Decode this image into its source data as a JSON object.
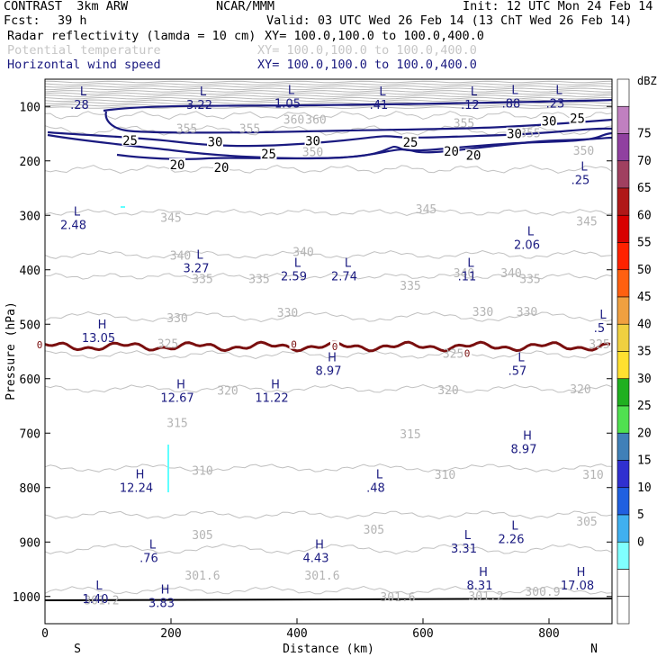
{
  "header": {
    "title": "CONTRAST  3km ARW",
    "producer": "NCAR/MMM",
    "init": "Init: 12 UTC Mon 24 Feb 14",
    "fcst_label": "Fcst:",
    "fcst_value": "39 h",
    "valid": "Valid: 03 UTC Wed 26 Feb 14 (13 ChT Wed 26 Feb 14)",
    "fields": [
      {
        "name": "Radar reflectivity (lamda = 10 cm)",
        "xy": "XY= 100.0,100.0 to 100.0,400.0",
        "color": "#000000"
      },
      {
        "name": "Potential temperature",
        "xy": "XY= 100.0,100.0 to 100.0,400.0",
        "color": "#c6c6c6"
      },
      {
        "name": "Horizontal wind speed",
        "xy": "XY= 100.0,100.0 to 100.0,400.0",
        "color": "#1a1a80"
      }
    ]
  },
  "chart_data": {
    "type": "cross-section contour",
    "xlabel": "Distance (km)",
    "ylabel": "Pressure (hPa)",
    "xlim": [
      0,
      900
    ],
    "ylim": [
      1050,
      50
    ],
    "x_ticks": [
      0,
      200,
      400,
      600,
      800
    ],
    "y_ticks": [
      100,
      200,
      300,
      400,
      500,
      600,
      700,
      800,
      900,
      1000
    ],
    "endpoint_labels": {
      "left": "S",
      "right": "N"
    },
    "colorbar": {
      "title": "dBZ",
      "levels": [
        75,
        70,
        65,
        60,
        55,
        50,
        45,
        40,
        35,
        30,
        25,
        20,
        15,
        10,
        5,
        0
      ],
      "colors": [
        "#ffffff",
        "#c080c0",
        "#9040a0",
        "#a04060",
        "#b01818",
        "#d80000",
        "#ff2200",
        "#ff6010",
        "#f0a040",
        "#f0d040",
        "#ffe030",
        "#20b020",
        "#50e050",
        "#4080b8",
        "#3030d0",
        "#2060e0",
        "#40b0f0",
        "#80ffff",
        "#ffffff",
        "#ffffff"
      ]
    },
    "theta_labels": [
      {
        "text": "360",
        "x": 395,
        "p": 125
      },
      {
        "text": "360",
        "x": 430,
        "p": 125
      },
      {
        "text": "355",
        "x": 225,
        "p": 142
      },
      {
        "text": "355",
        "x": 325,
        "p": 142
      },
      {
        "text": "355",
        "x": 665,
        "p": 132
      },
      {
        "text": "355",
        "x": 770,
        "p": 150
      },
      {
        "text": "350",
        "x": 425,
        "p": 185
      },
      {
        "text": "350",
        "x": 855,
        "p": 182
      },
      {
        "text": "345",
        "x": 200,
        "p": 305
      },
      {
        "text": "345",
        "x": 605,
        "p": 290
      },
      {
        "text": "345",
        "x": 860,
        "p": 312
      },
      {
        "text": "340",
        "x": 410,
        "p": 368
      },
      {
        "text": "340",
        "x": 665,
        "p": 407
      },
      {
        "text": "340",
        "x": 740,
        "p": 407
      },
      {
        "text": "340",
        "x": 215,
        "p": 375
      },
      {
        "text": "335",
        "x": 250,
        "p": 418
      },
      {
        "text": "335",
        "x": 340,
        "p": 418
      },
      {
        "text": "335",
        "x": 580,
        "p": 430
      },
      {
        "text": "335",
        "x": 770,
        "p": 418
      },
      {
        "text": "330",
        "x": 210,
        "p": 490
      },
      {
        "text": "330",
        "x": 385,
        "p": 480
      },
      {
        "text": "330",
        "x": 695,
        "p": 478
      },
      {
        "text": "330",
        "x": 765,
        "p": 478
      },
      {
        "text": "325",
        "x": 195,
        "p": 537
      },
      {
        "text": "325",
        "x": 648,
        "p": 555
      },
      {
        "text": "325",
        "x": 880,
        "p": 538
      },
      {
        "text": "320",
        "x": 290,
        "p": 623
      },
      {
        "text": "320",
        "x": 640,
        "p": 622
      },
      {
        "text": "320",
        "x": 850,
        "p": 620
      },
      {
        "text": "315",
        "x": 210,
        "p": 682
      },
      {
        "text": "315",
        "x": 580,
        "p": 703
      },
      {
        "text": "310",
        "x": 250,
        "p": 770
      },
      {
        "text": "310",
        "x": 635,
        "p": 777
      },
      {
        "text": "310",
        "x": 870,
        "p": 777
      },
      {
        "text": "305",
        "x": 250,
        "p": 888
      },
      {
        "text": "305",
        "x": 522,
        "p": 878
      },
      {
        "text": "305",
        "x": 860,
        "p": 863
      },
      {
        "text": "301.6",
        "x": 250,
        "p": 962
      },
      {
        "text": "301.6",
        "x": 440,
        "p": 962
      },
      {
        "text": "301.6",
        "x": 560,
        "p": 1002
      },
      {
        "text": "301.2",
        "x": 90,
        "p": 1008
      },
      {
        "text": "301.2",
        "x": 700,
        "p": 1000
      },
      {
        "text": "300.9",
        "x": 790,
        "p": 992
      }
    ],
    "wind_labels": [
      {
        "text": "25",
        "x": 135,
        "p": 162
      },
      {
        "text": "30",
        "x": 270,
        "p": 165
      },
      {
        "text": "30",
        "x": 425,
        "p": 163
      },
      {
        "text": "25",
        "x": 355,
        "p": 187
      },
      {
        "text": "20",
        "x": 210,
        "p": 207
      },
      {
        "text": "20",
        "x": 280,
        "p": 212
      },
      {
        "text": "25",
        "x": 580,
        "p": 166
      },
      {
        "text": "20",
        "x": 645,
        "p": 182
      },
      {
        "text": "20",
        "x": 680,
        "p": 190
      },
      {
        "text": "30",
        "x": 745,
        "p": 150
      },
      {
        "text": "30",
        "x": 800,
        "p": 127
      },
      {
        "text": "25",
        "x": 845,
        "p": 122
      }
    ],
    "extrema": [
      {
        "kind": "L",
        "value": ".28",
        "x": 55,
        "p": 80
      },
      {
        "kind": "L",
        "value": "3.22",
        "x": 245,
        "p": 80
      },
      {
        "kind": "L",
        "value": "1.05",
        "x": 385,
        "p": 77
      },
      {
        "kind": "L",
        "value": ".41",
        "x": 530,
        "p": 80
      },
      {
        "kind": "L",
        "value": ".12",
        "x": 675,
        "p": 80
      },
      {
        "kind": "L",
        "value": ".88",
        "x": 740,
        "p": 77
      },
      {
        "kind": "L",
        "value": ".23",
        "x": 810,
        "p": 77
      },
      {
        "kind": "L",
        "value": ".25",
        "x": 850,
        "p": 218
      },
      {
        "kind": "L",
        "value": "2.48",
        "x": 45,
        "p": 300
      },
      {
        "kind": "L",
        "value": "2.06",
        "x": 765,
        "p": 337
      },
      {
        "kind": "L",
        "value": "3.27",
        "x": 240,
        "p": 380
      },
      {
        "kind": "L",
        "value": "2.59",
        "x": 395,
        "p": 395
      },
      {
        "kind": "L",
        "value": "2.74",
        "x": 475,
        "p": 395
      },
      {
        "kind": "L",
        "value": ".11",
        "x": 670,
        "p": 395
      },
      {
        "kind": "L",
        "value": ".5",
        "x": 880,
        "p": 490
      },
      {
        "kind": "H",
        "value": "13.05",
        "x": 85,
        "p": 508
      },
      {
        "kind": "H",
        "value": "8.97",
        "x": 450,
        "p": 568
      },
      {
        "kind": "L",
        "value": ".57",
        "x": 750,
        "p": 568
      },
      {
        "kind": "H",
        "value": "12.67",
        "x": 210,
        "p": 618
      },
      {
        "kind": "H",
        "value": "11.22",
        "x": 360,
        "p": 618
      },
      {
        "kind": "H",
        "value": "8.97",
        "x": 760,
        "p": 712
      },
      {
        "kind": "H",
        "value": "12.24",
        "x": 145,
        "p": 783
      },
      {
        "kind": "L",
        "value": ".48",
        "x": 525,
        "p": 783
      },
      {
        "kind": "L",
        "value": "2.26",
        "x": 740,
        "p": 877
      },
      {
        "kind": "L",
        "value": "3.31",
        "x": 665,
        "p": 895
      },
      {
        "kind": "L",
        "value": ".76",
        "x": 165,
        "p": 912
      },
      {
        "kind": "H",
        "value": "4.43",
        "x": 430,
        "p": 912
      },
      {
        "kind": "H",
        "value": "8.31",
        "x": 690,
        "p": 962
      },
      {
        "kind": "H",
        "value": "17.08",
        "x": 845,
        "p": 962
      },
      {
        "kind": "L",
        "value": "1.40",
        "x": 80,
        "p": 987
      },
      {
        "kind": "H",
        "value": "3.83",
        "x": 185,
        "p": 995
      }
    ],
    "zero_labels": [
      {
        "text": "0",
        "x": -10,
        "p": 538
      },
      {
        "text": "0",
        "x": 395,
        "p": 537
      },
      {
        "text": "0",
        "x": 460,
        "p": 541
      },
      {
        "text": "0",
        "x": 670,
        "p": 553
      }
    ]
  }
}
